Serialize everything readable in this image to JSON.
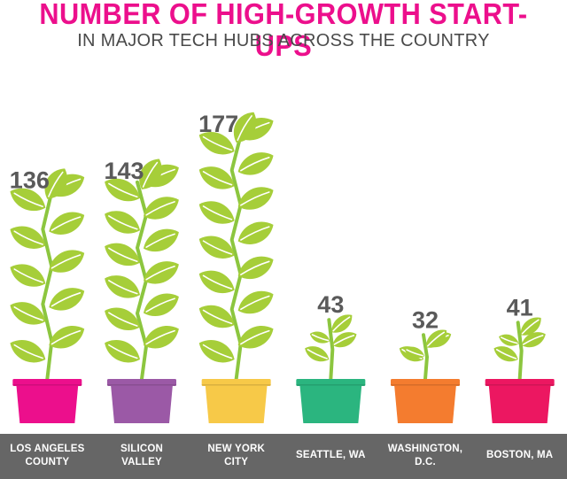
{
  "header": {
    "title": "NUMBER OF HIGH-GROWTH START-UPS",
    "subtitle": "IN MAJOR TECH HUBS ACROSS THE COUNTRY"
  },
  "colors": {
    "title": "#ec0f8c",
    "subtitle": "#4a4a4a",
    "value_label": "#5a5a5a",
    "leaf": "#a6ce39",
    "leaf_vein": "#ffffff",
    "stem": "#8cc63f",
    "band": "#666666"
  },
  "chart_data": {
    "type": "bar",
    "title": "NUMBER OF HIGH-GROWTH START-UPS",
    "subtitle": "IN MAJOR TECH HUBS ACROSS THE COUNTRY",
    "categories": [
      "LOS ANGELES\nCOUNTY",
      "SILICON\nVALLEY",
      "NEW YORK\nCITY",
      "SEATTLE, WA",
      "WASHINGTON,\nD.C.",
      "BOSTON, MA"
    ],
    "values": [
      136,
      143,
      177,
      43,
      32,
      41
    ],
    "value_labels": [
      "136",
      "143",
      "177",
      "43",
      "32",
      "41"
    ],
    "pot_colors": [
      "#ec0f8c",
      "#9b59a6",
      "#f7c948",
      "#2bb57f",
      "#f47c2f",
      "#ec1761"
    ],
    "xlabel": "",
    "ylabel": "",
    "ylim": [
      0,
      177
    ],
    "grid": false,
    "legend": "none"
  }
}
